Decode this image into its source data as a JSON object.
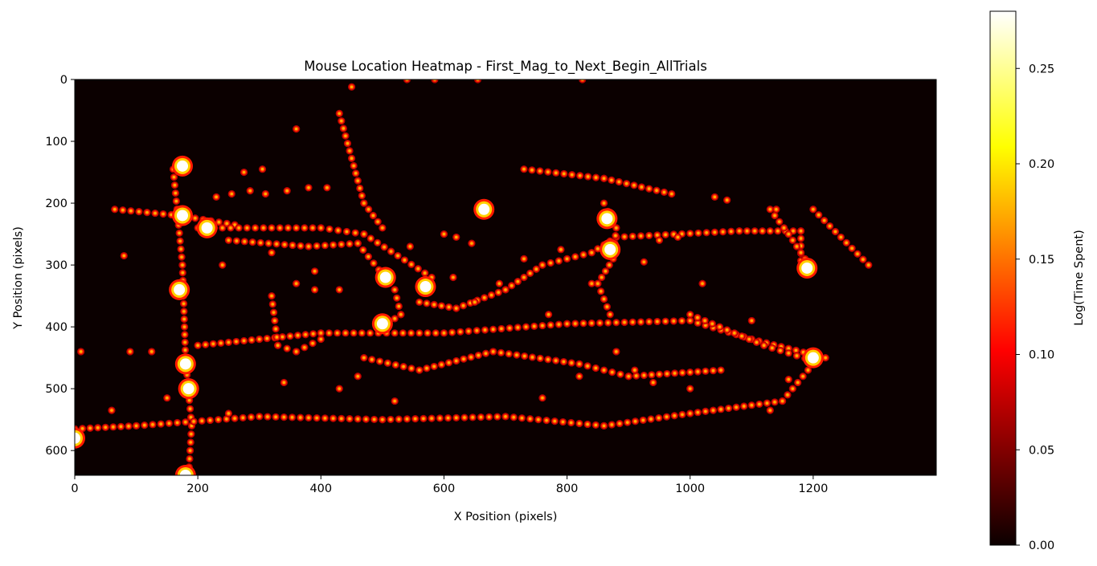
{
  "chart_data": {
    "type": "heatmap",
    "title": "Mouse Location Heatmap - First_Mag_to_Next_Begin_AllTrials",
    "xlabel": "X Position (pixels)",
    "ylabel": "Y Position (pixels)",
    "xlim": [
      0,
      1400
    ],
    "ylim": [
      640,
      0
    ],
    "xticks": [
      "0",
      "200",
      "400",
      "600",
      "800",
      "1000",
      "1200"
    ],
    "yticks": [
      "0",
      "100",
      "200",
      "300",
      "400",
      "500",
      "600"
    ],
    "colorbar": {
      "label": "Log(Time Spent)",
      "range": [
        0,
        0.28
      ],
      "ticks": [
        "0.00",
        "0.05",
        "0.10",
        "0.15",
        "0.20",
        "0.25"
      ],
      "colormap": "hot"
    },
    "grid": false,
    "segments": [
      [
        [
          160,
          145
        ],
        [
          175,
          300
        ],
        [
          180,
          450
        ],
        [
          190,
          560
        ],
        [
          185,
          640
        ]
      ],
      [
        [
          65,
          210
        ],
        [
          170,
          220
        ],
        [
          260,
          235
        ]
      ],
      [
        [
          200,
          240
        ],
        [
          400,
          240
        ],
        [
          470,
          250
        ],
        [
          580,
          320
        ]
      ],
      [
        [
          430,
          55
        ],
        [
          470,
          200
        ],
        [
          500,
          240
        ]
      ],
      [
        [
          250,
          260
        ],
        [
          380,
          270
        ],
        [
          460,
          265
        ],
        [
          520,
          340
        ],
        [
          530,
          380
        ],
        [
          500,
          400
        ]
      ],
      [
        [
          0,
          565
        ],
        [
          100,
          560
        ],
        [
          300,
          545
        ],
        [
          500,
          550
        ],
        [
          700,
          545
        ],
        [
          860,
          560
        ],
        [
          1000,
          540
        ],
        [
          1150,
          520
        ],
        [
          1200,
          460
        ]
      ],
      [
        [
          200,
          430
        ],
        [
          300,
          420
        ],
        [
          400,
          410
        ],
        [
          600,
          410
        ],
        [
          800,
          395
        ],
        [
          1000,
          390
        ],
        [
          1100,
          420
        ],
        [
          1220,
          450
        ]
      ],
      [
        [
          470,
          450
        ],
        [
          560,
          470
        ],
        [
          680,
          440
        ],
        [
          820,
          460
        ],
        [
          900,
          480
        ],
        [
          1050,
          470
        ]
      ],
      [
        [
          560,
          360
        ],
        [
          620,
          370
        ],
        [
          700,
          340
        ],
        [
          760,
          300
        ],
        [
          840,
          280
        ],
        [
          880,
          255
        ],
        [
          1080,
          245
        ],
        [
          1180,
          245
        ],
        [
          1180,
          305
        ]
      ],
      [
        [
          860,
          200
        ],
        [
          880,
          240
        ],
        [
          875,
          290
        ],
        [
          850,
          330
        ],
        [
          870,
          380
        ]
      ],
      [
        [
          730,
          145
        ],
        [
          860,
          160
        ],
        [
          970,
          185
        ]
      ],
      [
        [
          1200,
          210
        ],
        [
          1290,
          300
        ]
      ],
      [
        [
          1130,
          210
        ],
        [
          1160,
          250
        ],
        [
          1200,
          310
        ]
      ],
      [
        [
          1000,
          380
        ],
        [
          1120,
          430
        ],
        [
          1200,
          455
        ]
      ],
      [
        [
          320,
          350
        ],
        [
          330,
          430
        ],
        [
          360,
          440
        ],
        [
          400,
          420
        ]
      ]
    ],
    "hotspots": [
      [
        175,
        220
      ],
      [
        215,
        240
      ],
      [
        175,
        140
      ],
      [
        180,
        460
      ],
      [
        185,
        500
      ],
      [
        170,
        340
      ],
      [
        505,
        320
      ],
      [
        570,
        335
      ],
      [
        500,
        395
      ],
      [
        665,
        210
      ],
      [
        865,
        225
      ],
      [
        870,
        275
      ],
      [
        1200,
        450
      ],
      [
        1190,
        305
      ],
      [
        180,
        640
      ],
      [
        0,
        580
      ]
    ],
    "dots": [
      [
        450,
        12
      ],
      [
        540,
        0
      ],
      [
        585,
        0
      ],
      [
        655,
        0
      ],
      [
        825,
        0
      ],
      [
        360,
        80
      ],
      [
        275,
        150
      ],
      [
        305,
        145
      ],
      [
        310,
        185
      ],
      [
        345,
        180
      ],
      [
        380,
        175
      ],
      [
        410,
        175
      ],
      [
        80,
        285
      ],
      [
        240,
        300
      ],
      [
        320,
        280
      ],
      [
        10,
        440
      ],
      [
        90,
        440
      ],
      [
        125,
        440
      ],
      [
        360,
        330
      ],
      [
        390,
        340
      ],
      [
        430,
        340
      ],
      [
        390,
        310
      ],
      [
        340,
        490
      ],
      [
        620,
        255
      ],
      [
        645,
        265
      ],
      [
        730,
        290
      ],
      [
        790,
        275
      ],
      [
        840,
        330
      ],
      [
        880,
        440
      ],
      [
        910,
        470
      ],
      [
        980,
        255
      ],
      [
        950,
        260
      ],
      [
        1020,
        330
      ],
      [
        1040,
        190
      ],
      [
        1060,
        195
      ],
      [
        1100,
        390
      ],
      [
        1130,
        535
      ],
      [
        1160,
        485
      ],
      [
        60,
        535
      ],
      [
        150,
        515
      ],
      [
        250,
        540
      ],
      [
        430,
        500
      ],
      [
        460,
        480
      ],
      [
        520,
        520
      ],
      [
        760,
        515
      ],
      [
        940,
        490
      ],
      [
        1000,
        500
      ],
      [
        690,
        330
      ],
      [
        650,
        360
      ],
      [
        615,
        320
      ],
      [
        925,
        295
      ],
      [
        820,
        480
      ],
      [
        770,
        380
      ],
      [
        545,
        270
      ],
      [
        600,
        250
      ],
      [
        255,
        185
      ],
      [
        285,
        180
      ],
      [
        230,
        190
      ],
      [
        1140,
        210
      ]
    ]
  }
}
